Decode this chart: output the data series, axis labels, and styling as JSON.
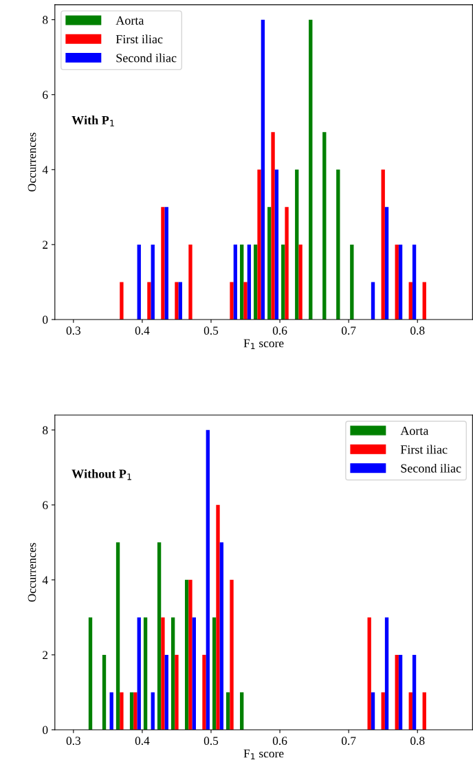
{
  "chart_data": [
    {
      "type": "histogram",
      "xlabel": "F$_{1}$ score",
      "ylabel": "Occurrences",
      "annotations": [
        "With P$_{1}$"
      ],
      "bins": [
        0.36,
        0.38,
        0.4,
        0.42,
        0.44,
        0.46,
        0.48,
        0.5,
        0.52,
        0.54,
        0.56,
        0.58,
        0.6,
        0.62,
        0.64,
        0.66,
        0.68,
        0.7,
        0.72,
        0.74,
        0.76,
        0.78,
        0.8,
        0.82
      ],
      "series": [
        {
          "name": "Aorta",
          "color": "#008000",
          "values": [
            0,
            0,
            0,
            0,
            0,
            0,
            0,
            0,
            0,
            2,
            2,
            3,
            2,
            4,
            8,
            5,
            4,
            2,
            0,
            0,
            0,
            0,
            0
          ]
        },
        {
          "name": "First iliac",
          "color": "#ff0000",
          "values": [
            1,
            0,
            1,
            3,
            1,
            2,
            0,
            0,
            1,
            1,
            4,
            5,
            3,
            2,
            0,
            0,
            0,
            0,
            0,
            4,
            2,
            1,
            1
          ]
        },
        {
          "name": "Second iliac",
          "color": "#0000ff",
          "values": [
            0,
            2,
            2,
            3,
            1,
            0,
            0,
            0,
            2,
            2,
            8,
            4,
            0,
            0,
            0,
            0,
            0,
            0,
            1,
            3,
            2,
            2,
            0
          ]
        }
      ],
      "xlim": [
        0.273,
        0.88
      ],
      "xticks": [
        0.3,
        0.4,
        0.5,
        0.6,
        0.7,
        0.8
      ],
      "ylim": [
        0,
        8.4
      ],
      "yticks": [
        0,
        2,
        4,
        6,
        8
      ],
      "legend": "top left",
      "grid": false
    },
    {
      "type": "histogram",
      "xlabel": "F$_{1}$ score",
      "ylabel": "Occurrences",
      "annotations": [
        "Without P$_{1}$"
      ],
      "bins": [
        0.32,
        0.34,
        0.36,
        0.38,
        0.4,
        0.42,
        0.44,
        0.46,
        0.48,
        0.5,
        0.52,
        0.54,
        0.56,
        0.58,
        0.6,
        0.62,
        0.64,
        0.66,
        0.68,
        0.7,
        0.72,
        0.74,
        0.76,
        0.78,
        0.8,
        0.82
      ],
      "series": [
        {
          "name": "Aorta",
          "color": "#008000",
          "values": [
            3,
            2,
            5,
            1,
            3,
            5,
            3,
            4,
            0,
            3,
            1,
            1,
            0,
            0,
            0,
            0,
            0,
            0,
            0,
            0,
            0,
            0,
            0,
            0,
            0
          ]
        },
        {
          "name": "First iliac",
          "color": "#ff0000",
          "values": [
            0,
            0,
            1,
            1,
            0,
            3,
            2,
            4,
            2,
            6,
            4,
            0,
            0,
            0,
            0,
            0,
            0,
            0,
            0,
            0,
            3,
            1,
            2,
            1,
            1
          ]
        },
        {
          "name": "Second iliac",
          "color": "#0000ff",
          "values": [
            0,
            1,
            0,
            3,
            1,
            2,
            0,
            3,
            8,
            5,
            0,
            0,
            0,
            0,
            0,
            0,
            0,
            0,
            0,
            0,
            1,
            3,
            2,
            2,
            0
          ]
        }
      ],
      "xlim": [
        0.273,
        0.88
      ],
      "xticks": [
        0.3,
        0.4,
        0.5,
        0.6,
        0.7,
        0.8
      ],
      "ylim": [
        0,
        8.4
      ],
      "yticks": [
        0,
        2,
        4,
        6,
        8
      ],
      "legend": "top right",
      "grid": false
    }
  ]
}
